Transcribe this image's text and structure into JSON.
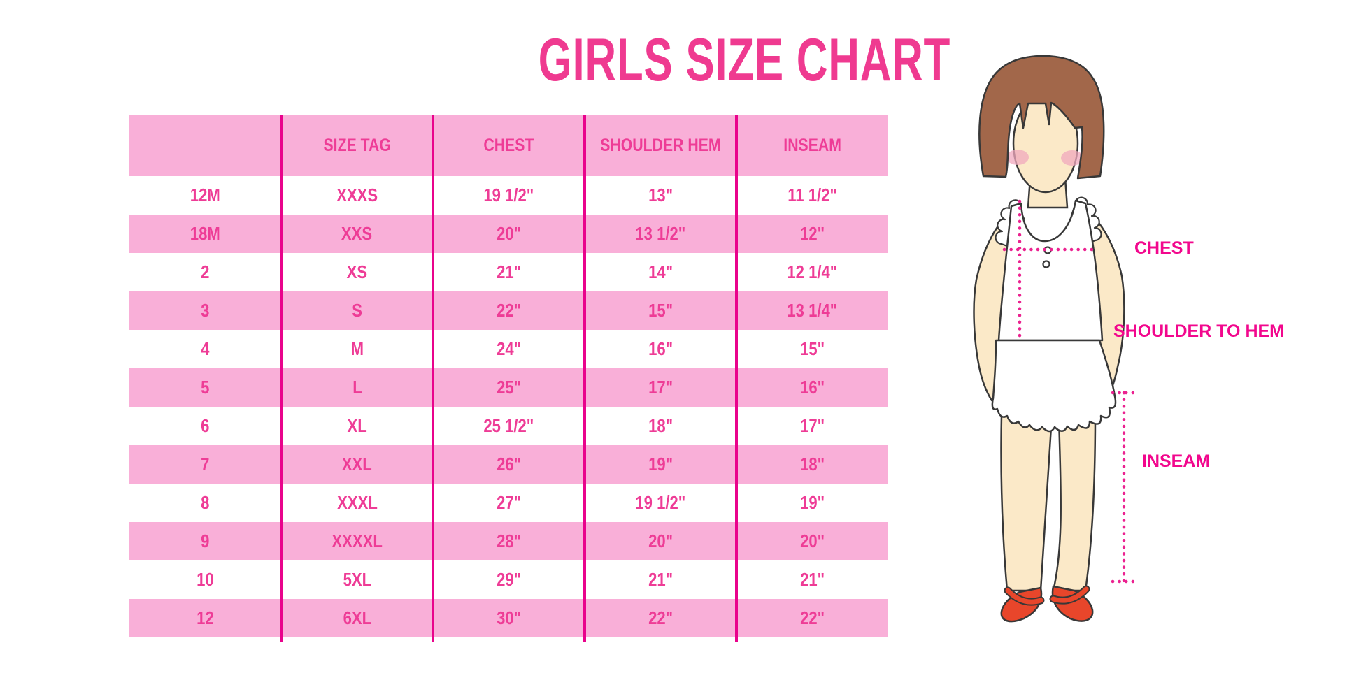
{
  "title": "GIRLS SIZE CHART",
  "colors": {
    "accent_pink": "#EF3A90",
    "row_pink": "#F9AFD8",
    "line_magenta": "#E9038C",
    "cell_text": "#EE3C96",
    "label_magenta": "#F2078D",
    "dot_magenta": "#EB2290",
    "shoe_red": "#E8462B",
    "hair_brown": "#A2674A",
    "skin": "#FBE9C8",
    "cheek": "#F0A8BE",
    "outline": "#383838"
  },
  "chart_data": {
    "type": "table",
    "title": "GIRLS SIZE CHART",
    "columns": [
      "",
      "SIZE TAG",
      "CHEST",
      "SHOULDER HEM",
      "INSEAM"
    ],
    "rows": [
      [
        "12M",
        "XXXS",
        "19 1/2\"",
        "13\"",
        "11 1/2\""
      ],
      [
        "18M",
        "XXS",
        "20\"",
        "13 1/2\"",
        "12\""
      ],
      [
        "2",
        "XS",
        "21\"",
        "14\"",
        "12 1/4\""
      ],
      [
        "3",
        "S",
        "22\"",
        "15\"",
        "13 1/4\""
      ],
      [
        "4",
        "M",
        "24\"",
        "16\"",
        "15\""
      ],
      [
        "5",
        "L",
        "25\"",
        "17\"",
        "16\""
      ],
      [
        "6",
        "XL",
        "25 1/2\"",
        "18\"",
        "17\""
      ],
      [
        "7",
        "XXL",
        "26\"",
        "19\"",
        "18\""
      ],
      [
        "8",
        "XXXL",
        "27\"",
        "19 1/2\"",
        "19\""
      ],
      [
        "9",
        "XXXXL",
        "28\"",
        "20\"",
        "20\""
      ],
      [
        "10",
        "5XL",
        "29\"",
        "21\"",
        "21\""
      ],
      [
        "12",
        "6XL",
        "30\"",
        "22\"",
        "22\""
      ]
    ],
    "row_shading_pattern": [
      "white",
      "pink",
      "white",
      "pink",
      "white",
      "pink",
      "white",
      "pink",
      "white",
      "pink",
      "white",
      "pink"
    ],
    "legend_position": "none",
    "grid": "vertical-dividers-only"
  },
  "figure": {
    "labels": {
      "chest": "CHEST",
      "shoulder_to_hem": "SHOULDER TO HEM",
      "inseam": "INSEAM"
    }
  }
}
